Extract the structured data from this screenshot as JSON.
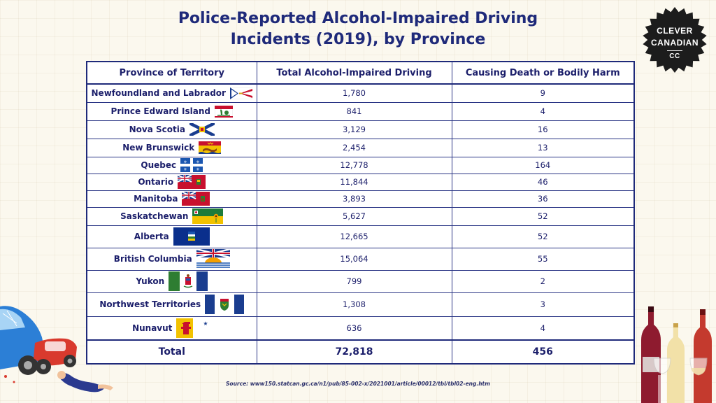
{
  "title_line1": "Police-Reported Alcohol-Impaired Driving",
  "title_line2": "Incidents (2019), by Province",
  "logo": {
    "line1": "CLEVER",
    "line2": "CANADIAN",
    "line3": "CC"
  },
  "colors": {
    "navy": "#1f2a7a",
    "background": "#fbf8ee",
    "logo": "#1c1c1c"
  },
  "chart_data": {
    "type": "table",
    "title": "Police-Reported Alcohol-Impaired Driving Incidents (2019), by Province",
    "columns": [
      "Province of Territory",
      "Total Alcohol-Impaired Driving",
      "Causing Death or Bodily Harm"
    ],
    "rows": [
      {
        "province": "Newfoundland and Labrador",
        "flag": "newfoundland-flag-icon",
        "total": "1,780",
        "death_harm": "9"
      },
      {
        "province": "Prince Edward Island",
        "flag": "pei-flag-icon",
        "total": "841",
        "death_harm": "4"
      },
      {
        "province": "Nova Scotia",
        "flag": "nova-scotia-flag-icon",
        "total": "3,129",
        "death_harm": "16"
      },
      {
        "province": "New Brunswick",
        "flag": "new-brunswick-flag-icon",
        "total": "2,454",
        "death_harm": "13"
      },
      {
        "province": "Quebec",
        "flag": "quebec-flag-icon",
        "total": "12,778",
        "death_harm": "164"
      },
      {
        "province": "Ontario",
        "flag": "ontario-flag-icon",
        "total": "11,844",
        "death_harm": "46"
      },
      {
        "province": "Manitoba",
        "flag": "manitoba-flag-icon",
        "total": "3,893",
        "death_harm": "36"
      },
      {
        "province": "Saskatchewan",
        "flag": "saskatchewan-flag-icon",
        "total": "5,627",
        "death_harm": "52"
      },
      {
        "province": "Alberta",
        "flag": "alberta-flag-icon",
        "total": "12,665",
        "death_harm": "52"
      },
      {
        "province": "British Columbia",
        "flag": "british-columbia-flag-icon",
        "total": "15,064",
        "death_harm": "55"
      },
      {
        "province": "Yukon",
        "flag": "yukon-flag-icon",
        "total": "799",
        "death_harm": "2"
      },
      {
        "province": "Northwest Territories",
        "flag": "nwt-flag-icon",
        "total": "1,308",
        "death_harm": "3"
      },
      {
        "province": "Nunavut",
        "flag": "nunavut-flag-icon",
        "total": "636",
        "death_harm": "4"
      }
    ],
    "total": {
      "label": "Total",
      "total": "72,818",
      "death_harm": "456"
    }
  },
  "source": "Source: www150.statcan.gc.ca/n1/pub/85-002-x/2021001/article/00012/tbl/tbl02-eng.htm"
}
